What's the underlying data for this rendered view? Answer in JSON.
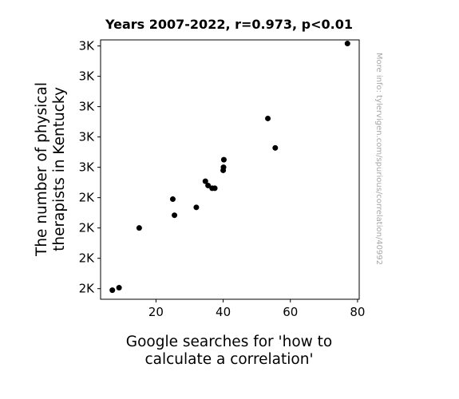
{
  "chart_data": {
    "type": "scatter",
    "title": "Years 2007-2022, r=0.973, p<0.01",
    "xlabel": [
      "Google searches for 'how to",
      "calculate a correlation'"
    ],
    "ylabel": [
      "The number of physical",
      "therapists in Kentucky"
    ],
    "watermark": "More info: tylervigen.com/spurious/correlation/40992",
    "xlim": [
      3.5,
      80.5
    ],
    "ylim": [
      2095,
      2950
    ],
    "x_ticks": [
      {
        "value": 20,
        "label": "20"
      },
      {
        "value": 40,
        "label": "40"
      },
      {
        "value": 60,
        "label": "60"
      },
      {
        "value": 80,
        "label": "80"
      }
    ],
    "y_ticks": [
      {
        "value": 2130,
        "label": "2K"
      },
      {
        "value": 2230,
        "label": "2K"
      },
      {
        "value": 2330,
        "label": "2K"
      },
      {
        "value": 2430,
        "label": "2K"
      },
      {
        "value": 2530,
        "label": "3K"
      },
      {
        "value": 2630,
        "label": "3K"
      },
      {
        "value": 2730,
        "label": "3K"
      },
      {
        "value": 2830,
        "label": "3K"
      },
      {
        "value": 2930,
        "label": "3K"
      }
    ],
    "grid": false,
    "marker_color": "#000000",
    "points": [
      {
        "x": 7.0,
        "y": 2125
      },
      {
        "x": 9.0,
        "y": 2133
      },
      {
        "x": 15.0,
        "y": 2330
      },
      {
        "x": 25.0,
        "y": 2425
      },
      {
        "x": 25.5,
        "y": 2372
      },
      {
        "x": 32.0,
        "y": 2398
      },
      {
        "x": 34.7,
        "y": 2484
      },
      {
        "x": 35.5,
        "y": 2470
      },
      {
        "x": 36.7,
        "y": 2461
      },
      {
        "x": 37.5,
        "y": 2461
      },
      {
        "x": 40.0,
        "y": 2520
      },
      {
        "x": 40.1,
        "y": 2530
      },
      {
        "x": 40.2,
        "y": 2555
      },
      {
        "x": 53.3,
        "y": 2691
      },
      {
        "x": 55.5,
        "y": 2594
      },
      {
        "x": 77.0,
        "y": 2938
      }
    ]
  }
}
